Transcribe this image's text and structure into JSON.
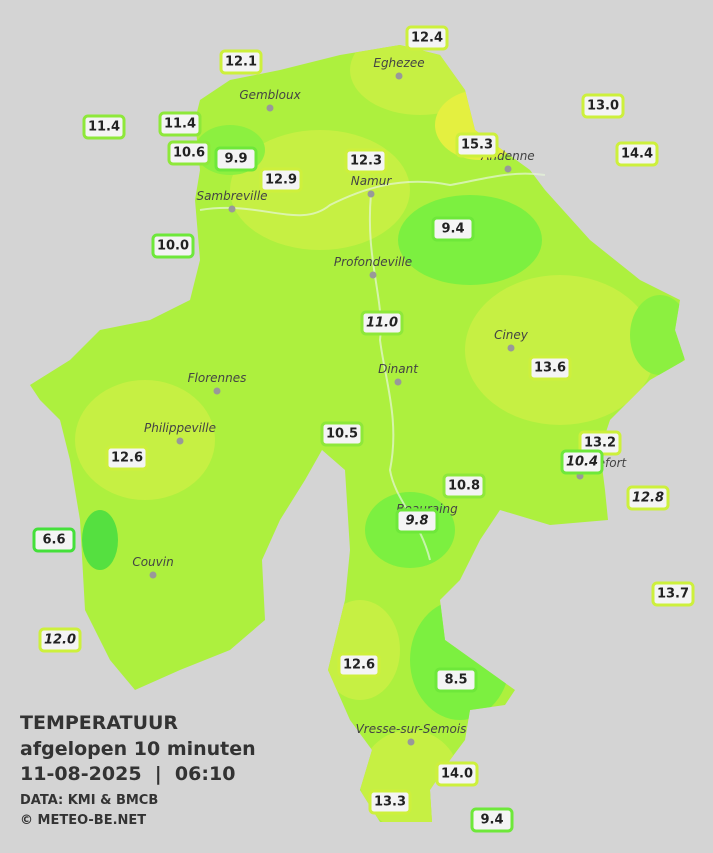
{
  "title": {
    "heading": "TEMPERATUUR",
    "period": "afgelopen 10 minuten",
    "timestamp": "11-08-2025  |  06:10",
    "source": "DATA: KMI & BMCB",
    "copyright": "© METEO-BE.NET"
  },
  "cities": [
    "Eghezee",
    "Gembloux",
    "Andenne",
    "Namur",
    "Sambreville",
    "Profondeville",
    "Ciney",
    "Dinant",
    "Florennes",
    "Philippeville",
    "Rochefort",
    "Beauraing",
    "Couvin",
    "Vresse-sur-Semois"
  ],
  "stations": [
    "12.4",
    "12.1",
    "13.0",
    "11.4",
    "11.4",
    "14.4",
    "10.6",
    "9.9",
    "15.3",
    "12.3",
    "12.9",
    "10.0",
    "9.4",
    "11.0",
    "13.6",
    "10.5",
    "13.2",
    "10.4",
    "12.6",
    "10.8",
    "12.8",
    "9.8",
    "6.6",
    "13.7",
    "12.0",
    "12.6",
    "8.5",
    "14.0",
    "13.3",
    "9.4"
  ]
}
